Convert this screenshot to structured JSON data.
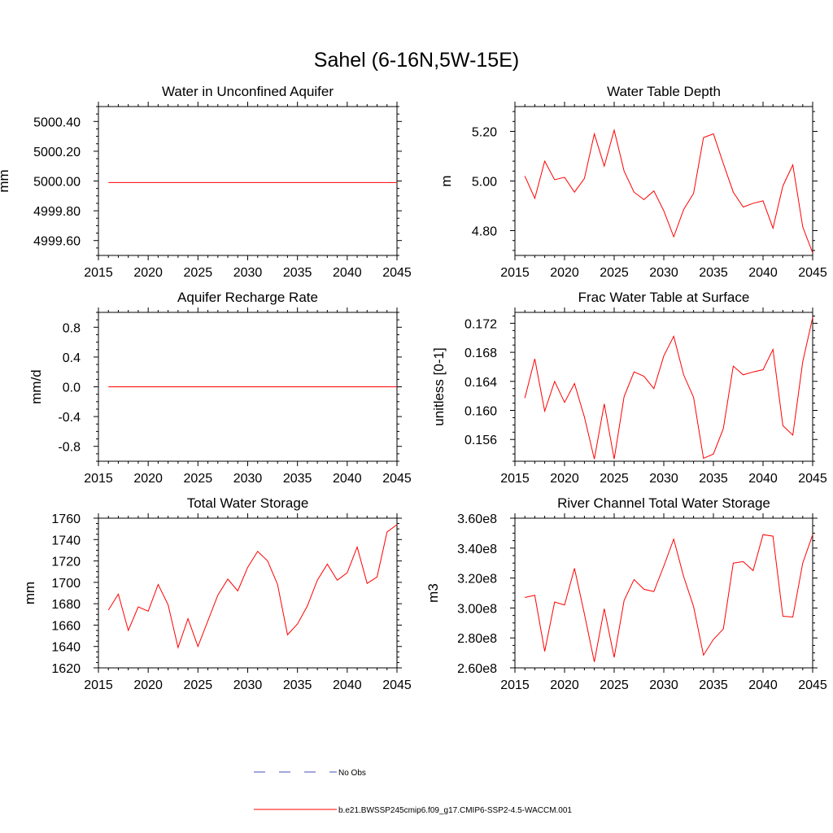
{
  "figure": {
    "title": "Sahel (6-16N,5W-15E)"
  },
  "colors": {
    "model_line": "#ff0000",
    "obs_line": "#4a4fb8",
    "axes": "#000000"
  },
  "legend": {
    "items": [
      {
        "label": "No Obs",
        "style": "dashed",
        "color": "#4a4fb8"
      },
      {
        "label": "b.e21.BWSSP245cmip6.f09_g17.CMIP6-SSP2-4.5-WACCM.001",
        "style": "solid",
        "color": "#ff0000"
      }
    ]
  },
  "chart_data": [
    {
      "id": "aquifer-water",
      "type": "line",
      "title": "Water in Unconfined Aquifer",
      "xlabel": "",
      "ylabel": "mm",
      "xlim": [
        2015,
        2045
      ],
      "ylim": [
        4999.5,
        5000.5
      ],
      "xticks": [
        2015,
        2020,
        2025,
        2030,
        2035,
        2040,
        2045
      ],
      "xtick_labels": [
        "2015",
        "2020",
        "2025",
        "2030",
        "2035",
        "2040",
        "2045"
      ],
      "yticks": [
        4999.6,
        4999.8,
        5000.0,
        5000.2,
        5000.4
      ],
      "ytick_labels": [
        "4999.60",
        "4999.80",
        "5000.00",
        "5000.20",
        "5000.40"
      ],
      "ymajor_step": 0.2,
      "yminor_div": 4,
      "x": [
        2016,
        2045
      ],
      "series": [
        {
          "name": "b.e21.BWSSP245cmip6.f09_g17.CMIP6-SSP2-4.5-WACCM.001",
          "values": [
            4999.99,
            4999.99
          ]
        }
      ]
    },
    {
      "id": "water-table-depth",
      "type": "line",
      "title": "Water Table Depth",
      "xlabel": "",
      "ylabel": "m",
      "xlim": [
        2015,
        2045
      ],
      "ylim": [
        4.7,
        5.3
      ],
      "xticks": [
        2015,
        2020,
        2025,
        2030,
        2035,
        2040,
        2045
      ],
      "xtick_labels": [
        "2015",
        "2020",
        "2025",
        "2030",
        "2035",
        "2040",
        "2045"
      ],
      "yticks": [
        4.8,
        5.0,
        5.2
      ],
      "ytick_labels": [
        "4.80",
        "5.00",
        "5.20"
      ],
      "ymajor_step": 0.2,
      "yminor_div": 5,
      "x": [
        2016,
        2017,
        2018,
        2019,
        2020,
        2021,
        2022,
        2023,
        2024,
        2025,
        2026,
        2027,
        2028,
        2029,
        2030,
        2031,
        2032,
        2033,
        2034,
        2035,
        2036,
        2037,
        2038,
        2039,
        2040,
        2041,
        2042,
        2043,
        2044,
        2045
      ],
      "series": [
        {
          "name": "b.e21.BWSSP245cmip6.f09_g17.CMIP6-SSP2-4.5-WACCM.001",
          "values": [
            5.02,
            4.93,
            5.08,
            5.005,
            5.015,
            4.955,
            5.01,
            5.19,
            5.06,
            5.205,
            5.04,
            4.955,
            4.925,
            4.96,
            4.88,
            4.775,
            4.885,
            4.95,
            5.175,
            5.19,
            5.07,
            4.955,
            4.895,
            4.91,
            4.92,
            4.81,
            4.98,
            5.065,
            4.815,
            4.71
          ]
        }
      ]
    },
    {
      "id": "recharge-rate",
      "type": "line",
      "title": "Aquifer Recharge Rate",
      "xlabel": "",
      "ylabel": "mm/d",
      "xlim": [
        2015,
        2045
      ],
      "ylim": [
        -1.0,
        1.0
      ],
      "xticks": [
        2015,
        2020,
        2025,
        2030,
        2035,
        2040,
        2045
      ],
      "xtick_labels": [
        "2015",
        "2020",
        "2025",
        "2030",
        "2035",
        "2040",
        "2045"
      ],
      "yticks": [
        -0.8,
        -0.4,
        0.0,
        0.4,
        0.8
      ],
      "ytick_labels": [
        "-0.8",
        "-0.4",
        "0.0",
        "0.4",
        "0.8"
      ],
      "ymajor_step": 0.4,
      "yminor_div": 4,
      "x": [
        2016,
        2045
      ],
      "series": [
        {
          "name": "b.e21.BWSSP245cmip6.f09_g17.CMIP6-SSP2-4.5-WACCM.001",
          "values": [
            0.0,
            0.0
          ]
        }
      ]
    },
    {
      "id": "frac-water-table",
      "type": "line",
      "title": "Frac Water Table at Surface",
      "xlabel": "",
      "ylabel": "unitless [0-1]",
      "xlim": [
        2015,
        2045
      ],
      "ylim": [
        0.153,
        0.1735
      ],
      "xticks": [
        2015,
        2020,
        2025,
        2030,
        2035,
        2040,
        2045
      ],
      "xtick_labels": [
        "2015",
        "2020",
        "2025",
        "2030",
        "2035",
        "2040",
        "2045"
      ],
      "yticks": [
        0.156,
        0.16,
        0.164,
        0.168,
        0.172
      ],
      "ytick_labels": [
        "0.156",
        "0.160",
        "0.164",
        "0.168",
        "0.172"
      ],
      "ymajor_step": 0.004,
      "yminor_div": 4,
      "x": [
        2016,
        2017,
        2018,
        2019,
        2020,
        2021,
        2022,
        2023,
        2024,
        2025,
        2026,
        2027,
        2028,
        2029,
        2030,
        2031,
        2032,
        2033,
        2034,
        2035,
        2036,
        2037,
        2038,
        2039,
        2040,
        2041,
        2042,
        2043,
        2044,
        2045
      ],
      "series": [
        {
          "name": "b.e21.BWSSP245cmip6.f09_g17.CMIP6-SSP2-4.5-WACCM.001",
          "values": [
            0.1617,
            0.1671,
            0.1599,
            0.164,
            0.1611,
            0.1637,
            0.1591,
            0.1533,
            0.1609,
            0.1533,
            0.1619,
            0.1653,
            0.1647,
            0.163,
            0.1675,
            0.1702,
            0.1649,
            0.1618,
            0.1534,
            0.154,
            0.1575,
            0.1661,
            0.1649,
            0.1653,
            0.1656,
            0.1684,
            0.1579,
            0.1566,
            0.1667,
            0.1728
          ]
        }
      ]
    },
    {
      "id": "total-water-storage",
      "type": "line",
      "title": "Total Water Storage",
      "xlabel": "",
      "ylabel": "mm",
      "xlim": [
        2015,
        2045
      ],
      "ylim": [
        1620,
        1760
      ],
      "xticks": [
        2015,
        2020,
        2025,
        2030,
        2035,
        2040,
        2045
      ],
      "xtick_labels": [
        "2015",
        "2020",
        "2025",
        "2030",
        "2035",
        "2040",
        "2045"
      ],
      "yticks": [
        1620,
        1640,
        1660,
        1680,
        1700,
        1720,
        1740,
        1760
      ],
      "ytick_labels": [
        "1620",
        "1640",
        "1660",
        "1680",
        "1700",
        "1720",
        "1740",
        "1760"
      ],
      "ymajor_step": 20,
      "yminor_div": 4,
      "x": [
        2016,
        2017,
        2018,
        2019,
        2020,
        2021,
        2022,
        2023,
        2024,
        2025,
        2026,
        2027,
        2028,
        2029,
        2030,
        2031,
        2032,
        2033,
        2034,
        2035,
        2036,
        2037,
        2038,
        2039,
        2040,
        2041,
        2042,
        2043,
        2044,
        2045
      ],
      "series": [
        {
          "name": "b.e21.BWSSP245cmip6.f09_g17.CMIP6-SSP2-4.5-WACCM.001",
          "values": [
            1674,
            1689,
            1655,
            1677,
            1673,
            1698,
            1679,
            1639,
            1666,
            1640,
            1664,
            1688,
            1703,
            1692,
            1714,
            1729,
            1720,
            1698,
            1651,
            1661,
            1678,
            1702,
            1717,
            1702,
            1709,
            1733,
            1699,
            1705,
            1747,
            1754
          ]
        }
      ]
    },
    {
      "id": "river-channel-storage",
      "type": "line",
      "title": "River Channel Total Water Storage",
      "xlabel": "",
      "ylabel": "m3",
      "xlim": [
        2015,
        2045
      ],
      "ylim": [
        260000000.0,
        360000000.0
      ],
      "xticks": [
        2015,
        2020,
        2025,
        2030,
        2035,
        2040,
        2045
      ],
      "xtick_labels": [
        "2015",
        "2020",
        "2025",
        "2030",
        "2035",
        "2040",
        "2045"
      ],
      "yticks": [
        260000000.0,
        280000000.0,
        300000000.0,
        320000000.0,
        340000000.0,
        360000000.0
      ],
      "ytick_labels": [
        "2.60e8",
        "2.80e8",
        "3.00e8",
        "3.20e8",
        "3.40e8",
        "3.60e8"
      ],
      "ymajor_step": 20000000.0,
      "yminor_div": 4,
      "x": [
        2016,
        2017,
        2018,
        2019,
        2020,
        2021,
        2022,
        2023,
        2024,
        2025,
        2026,
        2027,
        2028,
        2029,
        2030,
        2031,
        2032,
        2033,
        2034,
        2035,
        2036,
        2037,
        2038,
        2039,
        2040,
        2041,
        2042,
        2043,
        2044,
        2045
      ],
      "series": [
        {
          "name": "b.e21.BWSSP245cmip6.f09_g17.CMIP6-SSP2-4.5-WACCM.001",
          "values": [
            307000000.0,
            308500000.0,
            271000000.0,
            304000000.0,
            302000000.0,
            326500000.0,
            296000000.0,
            264000000.0,
            299500000.0,
            267000000.0,
            305000000.0,
            319000000.0,
            312500000.0,
            311000000.0,
            328000000.0,
            346000000.0,
            321000000.0,
            301000000.0,
            268500000.0,
            279000000.0,
            286000000.0,
            330000000.0,
            331000000.0,
            325000000.0,
            349000000.0,
            348000000.0,
            294500000.0,
            294000000.0,
            330000000.0,
            349000000.0
          ]
        }
      ]
    }
  ]
}
